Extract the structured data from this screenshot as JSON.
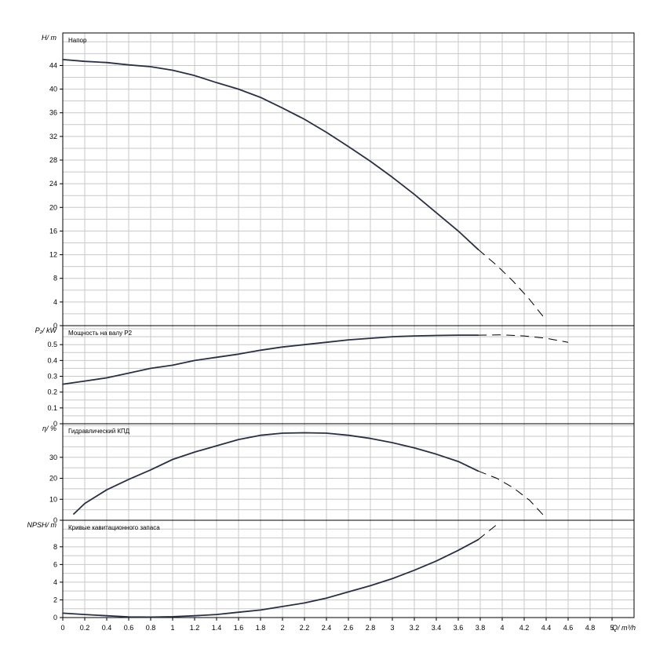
{
  "chart_data": {
    "type": "line",
    "xlabel": "Q/ m³/h",
    "x_ticks": [
      "0",
      "0.2",
      "0.4",
      "0.6",
      "0.8",
      "1",
      "1.2",
      "1.4",
      "1.6",
      "1.8",
      "2",
      "2.2",
      "2.4",
      "2.6",
      "2.8",
      "3",
      "3.2",
      "3.4",
      "3.6",
      "3.8",
      "4",
      "4.2",
      "4.4",
      "4.6",
      "4.8",
      "5"
    ],
    "xlim": [
      0,
      5.2
    ],
    "panels": [
      {
        "key": "H",
        "title": "Напор",
        "ylabel": "H/ m",
        "ylim": [
          0,
          49.5
        ],
        "y_ticks": [
          "0",
          "4",
          "8",
          "12",
          "16",
          "20",
          "24",
          "28",
          "32",
          "36",
          "40",
          "44"
        ],
        "series_solid": [
          [
            0,
            45
          ],
          [
            0.2,
            44.7
          ],
          [
            0.4,
            44.5
          ],
          [
            0.6,
            44.1
          ],
          [
            0.8,
            43.8
          ],
          [
            1.0,
            43.2
          ],
          [
            1.2,
            42.3
          ],
          [
            1.4,
            41.1
          ],
          [
            1.6,
            40.0
          ],
          [
            1.8,
            38.6
          ],
          [
            2.0,
            36.8
          ],
          [
            2.2,
            34.9
          ],
          [
            2.4,
            32.7
          ],
          [
            2.6,
            30.3
          ],
          [
            2.8,
            27.8
          ],
          [
            3.0,
            25.1
          ],
          [
            3.2,
            22.2
          ],
          [
            3.4,
            19.1
          ],
          [
            3.6,
            16.0
          ],
          [
            3.78,
            12.9
          ]
        ],
        "series_dashed": [
          [
            3.78,
            12.9
          ],
          [
            3.95,
            10.2
          ],
          [
            4.1,
            7.5
          ],
          [
            4.25,
            4.4
          ],
          [
            4.4,
            0.9
          ]
        ]
      },
      {
        "key": "P2",
        "title": "Мощность на валу P2",
        "ylabel": "P₂/ kW",
        "ylim": [
          0,
          0.62
        ],
        "y_ticks": [
          "0",
          "0.1",
          "0.2",
          "0.3",
          "0.4",
          "0.5"
        ],
        "series_solid": [
          [
            0,
            0.25
          ],
          [
            0.2,
            0.27
          ],
          [
            0.4,
            0.29
          ],
          [
            0.6,
            0.32
          ],
          [
            0.8,
            0.35
          ],
          [
            1.0,
            0.37
          ],
          [
            1.2,
            0.4
          ],
          [
            1.4,
            0.42
          ],
          [
            1.6,
            0.44
          ],
          [
            1.8,
            0.465
          ],
          [
            2.0,
            0.485
          ],
          [
            2.2,
            0.5
          ],
          [
            2.4,
            0.515
          ],
          [
            2.6,
            0.53
          ],
          [
            2.8,
            0.54
          ],
          [
            3.0,
            0.55
          ],
          [
            3.2,
            0.555
          ],
          [
            3.4,
            0.558
          ],
          [
            3.6,
            0.56
          ],
          [
            3.78,
            0.56
          ]
        ],
        "series_dashed": [
          [
            3.78,
            0.56
          ],
          [
            4.0,
            0.562
          ],
          [
            4.2,
            0.555
          ],
          [
            4.4,
            0.54
          ],
          [
            4.6,
            0.515
          ]
        ]
      },
      {
        "key": "eta",
        "title": "Гидравлический КПД",
        "ylabel": "η/ %",
        "ylim": [
          0,
          46
        ],
        "y_ticks": [
          "0",
          "10",
          "20",
          "30"
        ],
        "series_solid": [
          [
            0.1,
            3
          ],
          [
            0.2,
            8
          ],
          [
            0.4,
            14.5
          ],
          [
            0.6,
            19.5
          ],
          [
            0.8,
            24
          ],
          [
            1.0,
            29
          ],
          [
            1.2,
            32.5
          ],
          [
            1.4,
            35.5
          ],
          [
            1.6,
            38.5
          ],
          [
            1.8,
            40.5
          ],
          [
            2.0,
            41.5
          ],
          [
            2.2,
            41.7
          ],
          [
            2.4,
            41.5
          ],
          [
            2.6,
            40.5
          ],
          [
            2.8,
            39
          ],
          [
            3.0,
            37
          ],
          [
            3.2,
            34.5
          ],
          [
            3.4,
            31.5
          ],
          [
            3.6,
            28
          ],
          [
            3.78,
            23.5
          ]
        ],
        "series_dashed": [
          [
            3.78,
            23.5
          ],
          [
            3.95,
            20
          ],
          [
            4.1,
            15.5
          ],
          [
            4.25,
            9.5
          ],
          [
            4.4,
            1
          ]
        ]
      },
      {
        "key": "NPSH",
        "title": "Кривые кавитационного запаса",
        "ylabel": "NPSH/ m",
        "ylim": [
          0,
          11
        ],
        "y_ticks": [
          "0",
          "2",
          "4",
          "6",
          "8"
        ],
        "series_solid": [
          [
            0,
            0.5
          ],
          [
            0.2,
            0.35
          ],
          [
            0.4,
            0.2
          ],
          [
            0.6,
            0.08
          ],
          [
            0.8,
            0.05
          ],
          [
            1.0,
            0.1
          ],
          [
            1.2,
            0.2
          ],
          [
            1.4,
            0.35
          ],
          [
            1.6,
            0.6
          ],
          [
            1.8,
            0.85
          ],
          [
            2.0,
            1.25
          ],
          [
            2.2,
            1.65
          ],
          [
            2.4,
            2.2
          ],
          [
            2.6,
            2.9
          ],
          [
            2.8,
            3.6
          ],
          [
            3.0,
            4.4
          ],
          [
            3.2,
            5.35
          ],
          [
            3.4,
            6.4
          ],
          [
            3.6,
            7.6
          ],
          [
            3.78,
            8.8
          ]
        ],
        "series_dashed": [
          [
            3.78,
            8.8
          ],
          [
            3.95,
            10.5
          ]
        ]
      }
    ]
  }
}
